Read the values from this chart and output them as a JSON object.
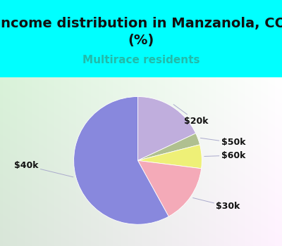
{
  "title": "Income distribution in Manzanola, CO\n(%)",
  "subtitle": "Multirace residents",
  "slices": [
    {
      "label": "$20k",
      "value": 18,
      "color": "#c0aedd"
    },
    {
      "label": "$50k",
      "value": 3,
      "color": "#b0c090"
    },
    {
      "label": "$60k",
      "value": 6,
      "color": "#eef077"
    },
    {
      "label": "$30k",
      "value": 15,
      "color": "#f4aab8"
    },
    {
      "label": "$40k",
      "value": 58,
      "color": "#8888dd"
    }
  ],
  "title_fontsize": 14,
  "subtitle_fontsize": 11,
  "subtitle_color": "#22bbaa",
  "title_color": "#111111",
  "bg_color": "#00ffff",
  "label_color": "#111111",
  "label_fontsize": 9,
  "label_positions": [
    {
      "label": "$20k",
      "xt": 0.72,
      "yt": 0.62,
      "ha": "left"
    },
    {
      "label": "$50k",
      "xt": 1.3,
      "yt": 0.28,
      "ha": "left"
    },
    {
      "label": "$60k",
      "xt": 1.3,
      "yt": 0.08,
      "ha": "left"
    },
    {
      "label": "$30k",
      "xt": 1.22,
      "yt": -0.72,
      "ha": "left"
    },
    {
      "label": "$40k",
      "xt": -1.55,
      "yt": -0.08,
      "ha": "right"
    }
  ]
}
